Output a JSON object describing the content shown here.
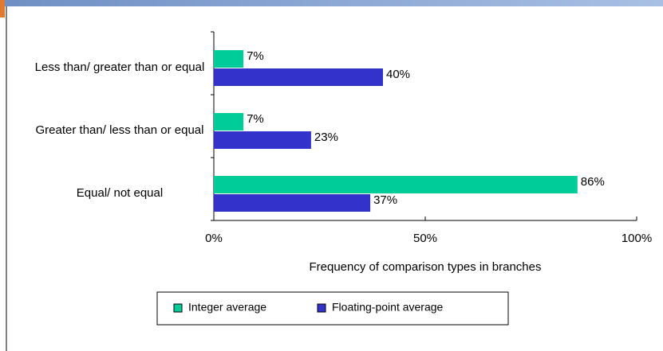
{
  "chart_data": {
    "type": "bar",
    "orientation": "horizontal",
    "x_label": "Frequency of comparison types in branches",
    "categories": [
      "Less than/ greater than or equal",
      "Greater than/ less than or equal",
      "Equal/ not equal"
    ],
    "series": [
      {
        "name": "Integer average",
        "color": "#00cc99",
        "values": [
          7,
          7,
          86
        ],
        "value_labels": [
          "7%",
          "7%",
          "86%"
        ]
      },
      {
        "name": "Floating-point average",
        "color": "#3333cc",
        "values": [
          40,
          23,
          37
        ],
        "value_labels": [
          "40%",
          "23%",
          "37%"
        ]
      }
    ],
    "xlim": [
      0,
      100
    ],
    "xticks": [
      {
        "value": 0,
        "label": "0%"
      },
      {
        "value": 50,
        "label": "50%"
      },
      {
        "value": 100,
        "label": "100%"
      }
    ],
    "legend": "bottom"
  }
}
